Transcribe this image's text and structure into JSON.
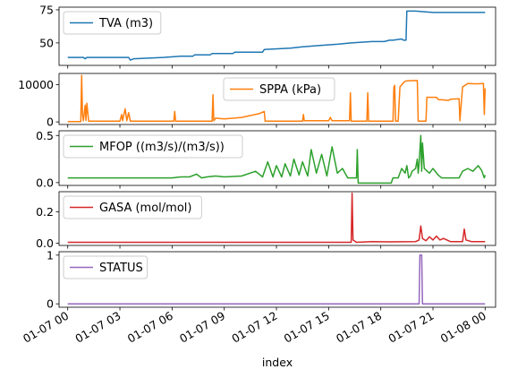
{
  "chart_data": {
    "type": "line",
    "xlabel": "index",
    "x_ticks": [
      "01-07 00",
      "01-07 03",
      "01-07 06",
      "01-07 09",
      "01-07 12",
      "01-07 15",
      "01-07 18",
      "01-07 21",
      "01-08 00"
    ],
    "x_range_hours": [
      -0.5,
      24.6
    ],
    "panels": [
      {
        "name": "TVA (m3)",
        "color": "#1f77b4",
        "ylim": [
          33,
          77
        ],
        "yticks": [
          {
            "v": 50,
            "label": "50"
          },
          {
            "v": 75,
            "label": "75"
          }
        ],
        "legend": "top-left",
        "points": [
          [
            0,
            39
          ],
          [
            0.9,
            39
          ],
          [
            1,
            38
          ],
          [
            1.1,
            39
          ],
          [
            2.3,
            39
          ],
          [
            3.5,
            39
          ],
          [
            3.6,
            37
          ],
          [
            3.8,
            38
          ],
          [
            5.5,
            39
          ],
          [
            6.5,
            40
          ],
          [
            7.2,
            40
          ],
          [
            7.3,
            41
          ],
          [
            8.2,
            41
          ],
          [
            8.3,
            42
          ],
          [
            9.5,
            42
          ],
          [
            9.6,
            43
          ],
          [
            11.2,
            43
          ],
          [
            11.3,
            45
          ],
          [
            12.8,
            46
          ],
          [
            13.5,
            47
          ],
          [
            14.5,
            48
          ],
          [
            15.5,
            49
          ],
          [
            16.3,
            50
          ],
          [
            17.5,
            51
          ],
          [
            17.8,
            51
          ],
          [
            18.2,
            51
          ],
          [
            18.5,
            52
          ],
          [
            18.7,
            52
          ],
          [
            19.2,
            53
          ],
          [
            19.3,
            52
          ],
          [
            19.4,
            52
          ],
          [
            19.45,
            52
          ],
          [
            19.5,
            74
          ],
          [
            20,
            74
          ],
          [
            21,
            73
          ],
          [
            22,
            73
          ],
          [
            23,
            73
          ],
          [
            24,
            73
          ]
        ]
      },
      {
        "name": "SPPA (kPa)",
        "color": "#ff7f0e",
        "ylim": [
          -700,
          13000
        ],
        "yticks": [
          {
            "v": 0,
            "label": "0"
          },
          {
            "v": 10000,
            "label": "10000"
          }
        ],
        "legend": "top-center",
        "points": [
          [
            0,
            100
          ],
          [
            0.75,
            100
          ],
          [
            0.8,
            12500
          ],
          [
            0.85,
            2000
          ],
          [
            0.9,
            300
          ],
          [
            1.0,
            4500
          ],
          [
            1.05,
            400
          ],
          [
            1.1,
            5000
          ],
          [
            1.2,
            200
          ],
          [
            3,
            200
          ],
          [
            3.1,
            2000
          ],
          [
            3.15,
            300
          ],
          [
            3.3,
            3500
          ],
          [
            3.4,
            300
          ],
          [
            3.5,
            2500
          ],
          [
            3.6,
            200
          ],
          [
            6.1,
            200
          ],
          [
            6.15,
            2800
          ],
          [
            6.2,
            200
          ],
          [
            8.3,
            200
          ],
          [
            8.35,
            7300
          ],
          [
            8.4,
            300
          ],
          [
            8.5,
            1000
          ],
          [
            9,
            800
          ],
          [
            10,
            1200
          ],
          [
            11,
            2200
          ],
          [
            11.3,
            2800
          ],
          [
            11.35,
            200
          ],
          [
            13.5,
            200
          ],
          [
            13.55,
            2000
          ],
          [
            13.6,
            300
          ],
          [
            15,
            300
          ],
          [
            15.1,
            1200
          ],
          [
            15.2,
            300
          ],
          [
            16.2,
            300
          ],
          [
            16.25,
            7800
          ],
          [
            16.3,
            200
          ],
          [
            17.2,
            200
          ],
          [
            17.25,
            7800
          ],
          [
            17.3,
            200
          ],
          [
            18.7,
            200
          ],
          [
            18.75,
            9300
          ],
          [
            18.8,
            9800
          ],
          [
            18.85,
            200
          ],
          [
            19,
            200
          ],
          [
            19.1,
            9400
          ],
          [
            19.3,
            10500
          ],
          [
            19.4,
            10900
          ],
          [
            19.5,
            11000
          ],
          [
            20.1,
            11100
          ],
          [
            20.15,
            200
          ],
          [
            20.6,
            200
          ],
          [
            20.65,
            6600
          ],
          [
            21.2,
            6600
          ],
          [
            21.3,
            6000
          ],
          [
            21.9,
            5800
          ],
          [
            22.0,
            6100
          ],
          [
            22.5,
            6200
          ],
          [
            22.55,
            300
          ],
          [
            22.7,
            9400
          ],
          [
            23,
            10300
          ],
          [
            23.5,
            10200
          ],
          [
            23.9,
            10300
          ],
          [
            23.95,
            2000
          ],
          [
            24,
            9000
          ]
        ]
      },
      {
        "name": "MFOP ((m3/s)/(m3/s))",
        "color": "#2ca02c",
        "ylim": [
          -0.03,
          0.55
        ],
        "yticks": [
          {
            "v": 0.0,
            "label": "0.0"
          },
          {
            "v": 0.5,
            "label": "0.5"
          }
        ],
        "legend": "top-left",
        "points": [
          [
            0,
            0.05
          ],
          [
            6.0,
            0.05
          ],
          [
            6.5,
            0.06
          ],
          [
            7,
            0.06
          ],
          [
            7.4,
            0.09
          ],
          [
            7.7,
            0.05
          ],
          [
            8,
            0.06
          ],
          [
            8.5,
            0.07
          ],
          [
            9,
            0.06
          ],
          [
            10,
            0.07
          ],
          [
            10.8,
            0.12
          ],
          [
            11.2,
            0.06
          ],
          [
            11.5,
            0.22
          ],
          [
            11.8,
            0.06
          ],
          [
            12,
            0.18
          ],
          [
            12.3,
            0.06
          ],
          [
            12.5,
            0.2
          ],
          [
            12.8,
            0.07
          ],
          [
            13,
            0.25
          ],
          [
            13.3,
            0.08
          ],
          [
            13.5,
            0.22
          ],
          [
            13.8,
            0.07
          ],
          [
            14,
            0.35
          ],
          [
            14.3,
            0.1
          ],
          [
            14.6,
            0.3
          ],
          [
            14.9,
            0.07
          ],
          [
            15.2,
            0.38
          ],
          [
            15.5,
            0.1
          ],
          [
            15.8,
            0.15
          ],
          [
            16.1,
            0.05
          ],
          [
            16.5,
            0.05
          ],
          [
            16.6,
            0.05
          ],
          [
            16.65,
            0.35
          ],
          [
            16.7,
            -0.005
          ],
          [
            18.6,
            -0.005
          ],
          [
            18.7,
            0.05
          ],
          [
            19.0,
            0.05
          ],
          [
            19.2,
            0.15
          ],
          [
            19.4,
            0.1
          ],
          [
            19.5,
            0.18
          ],
          [
            19.6,
            0.05
          ],
          [
            19.7,
            0.07
          ],
          [
            19.8,
            0.12
          ],
          [
            20.0,
            0.15
          ],
          [
            20.1,
            0.25
          ],
          [
            20.15,
            0.1
          ],
          [
            20.2,
            0.2
          ],
          [
            20.3,
            0.5
          ],
          [
            20.35,
            0.12
          ],
          [
            20.4,
            0.42
          ],
          [
            20.5,
            0.15
          ],
          [
            20.8,
            0.1
          ],
          [
            21.0,
            0.15
          ],
          [
            21.3,
            0.08
          ],
          [
            21.5,
            0.05
          ],
          [
            22.5,
            0.05
          ],
          [
            22.7,
            0.12
          ],
          [
            23.0,
            0.15
          ],
          [
            23.3,
            0.12
          ],
          [
            23.6,
            0.18
          ],
          [
            23.8,
            0.13
          ],
          [
            23.95,
            0.05
          ],
          [
            24,
            0.08
          ]
        ]
      },
      {
        "name": "GASA (mol/mol)",
        "color": "#d62728",
        "ylim": [
          -0.015,
          0.33
        ],
        "yticks": [
          {
            "v": 0.0,
            "label": "0.0"
          },
          {
            "v": 0.2,
            "label": "0.2"
          }
        ],
        "legend": "top-left",
        "points": [
          [
            0,
            0.005
          ],
          [
            16.3,
            0.005
          ],
          [
            16.35,
            0.32
          ],
          [
            16.4,
            0.02
          ],
          [
            16.6,
            0.005
          ],
          [
            17.5,
            0.01
          ],
          [
            18.5,
            0.008
          ],
          [
            20,
            0.01
          ],
          [
            20.2,
            0.02
          ],
          [
            20.3,
            0.11
          ],
          [
            20.4,
            0.03
          ],
          [
            20.6,
            0.015
          ],
          [
            20.8,
            0.04
          ],
          [
            21.0,
            0.02
          ],
          [
            21.2,
            0.045
          ],
          [
            21.4,
            0.02
          ],
          [
            21.6,
            0.03
          ],
          [
            22,
            0.01
          ],
          [
            22.7,
            0.01
          ],
          [
            22.8,
            0.09
          ],
          [
            22.9,
            0.02
          ],
          [
            23.2,
            0.01
          ],
          [
            24,
            0.01
          ]
        ]
      },
      {
        "name": "STATUS",
        "color": "#9467bd",
        "ylim": [
          -0.07,
          1.07
        ],
        "yticks": [
          {
            "v": 0,
            "label": "0"
          },
          {
            "v": 1,
            "label": "1"
          }
        ],
        "legend": "top-left",
        "points": [
          [
            0,
            0
          ],
          [
            20.2,
            0
          ],
          [
            20.25,
            1
          ],
          [
            20.35,
            1
          ],
          [
            20.4,
            0
          ],
          [
            24,
            0
          ]
        ]
      }
    ]
  }
}
